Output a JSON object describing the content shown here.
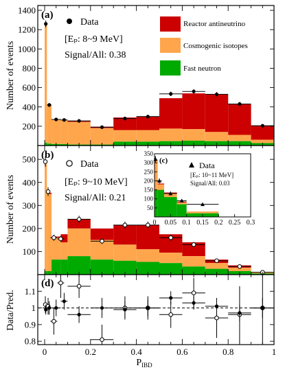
{
  "colors": {
    "reactor": "#cc0000",
    "cosmogenic": "#ffa64d",
    "fast_neutron": "#00aa00",
    "data": "#000000"
  },
  "chart_data": [
    {
      "panel": "a",
      "type": "area",
      "tag": "(a)",
      "ylabel": "Number of events",
      "ylim": [
        0,
        1450
      ],
      "yticks": [
        200,
        400,
        600,
        800,
        1000,
        1200,
        1400
      ],
      "xlim": [
        -0.03,
        1.0
      ],
      "annotation_lines": [
        "[Eₚ: 8~9 MeV]",
        "Signal/All: 0.38"
      ],
      "legend": {
        "data_label": "Data",
        "reactor_label": "Reactor antineutrino",
        "cosmogenic_label": "Cosmogenic isotopes",
        "fast_label": "Fast neutron"
      },
      "bins": [
        0,
        0.01,
        0.03,
        0.07,
        0.1,
        0.2,
        0.3,
        0.4,
        0.5,
        0.6,
        0.7,
        0.8,
        0.9,
        1.0
      ],
      "fast_neutron": [
        30,
        20,
        15,
        15,
        10,
        10,
        40,
        40,
        45,
        50,
        45,
        45,
        25
      ],
      "cosmogenic_cum": [
        1270,
        420,
        270,
        265,
        245,
        180,
        160,
        160,
        175,
        170,
        140,
        110,
        60
      ],
      "total_cum": [
        1270,
        420,
        270,
        265,
        255,
        195,
        290,
        300,
        490,
        540,
        530,
        430,
        205
      ],
      "data": {
        "x": [
          0.005,
          0.02,
          0.05,
          0.085,
          0.15,
          0.25,
          0.35,
          0.45,
          0.55,
          0.65,
          0.75,
          0.85,
          0.95
        ],
        "xerr": [
          0.005,
          0.01,
          0.02,
          0.015,
          0.05,
          0.05,
          0.05,
          0.05,
          0.05,
          0.05,
          0.05,
          0.05,
          0.05
        ],
        "y": [
          1260,
          420,
          270,
          265,
          255,
          190,
          280,
          300,
          535,
          560,
          530,
          430,
          205
        ],
        "yerr": [
          35,
          20,
          16,
          16,
          16,
          14,
          17,
          17,
          23,
          24,
          23,
          21,
          14
        ]
      }
    },
    {
      "panel": "b",
      "type": "area",
      "tag": "(b)",
      "ylabel": "Number of events",
      "ylim": [
        0,
        560
      ],
      "yticks": [
        100,
        200,
        300,
        400,
        500
      ],
      "xlim": [
        -0.03,
        1.0
      ],
      "annotation_lines": [
        "[Eₚ: 9~10 MeV]",
        "Signal/All: 0.21"
      ],
      "legend": {
        "data_label": "Data"
      },
      "bins": [
        0,
        0.01,
        0.03,
        0.07,
        0.1,
        0.2,
        0.3,
        0.4,
        0.5,
        0.6,
        0.7,
        0.8,
        0.9,
        1.0
      ],
      "fast_neutron": [
        15,
        15,
        65,
        65,
        80,
        65,
        60,
        55,
        50,
        35,
        25,
        15,
        5
      ],
      "cosmogenic_cum": [
        480,
        350,
        160,
        140,
        200,
        150,
        130,
        110,
        95,
        80,
        50,
        30,
        10
      ],
      "total_cum": [
        480,
        355,
        165,
        175,
        240,
        200,
        215,
        215,
        175,
        140,
        65,
        40,
        10
      ],
      "data": {
        "x": [
          0.003,
          0.015,
          0.04,
          0.07,
          0.15,
          0.25,
          0.35,
          0.45,
          0.55,
          0.65,
          0.75,
          0.85,
          0.95
        ],
        "xerr": [
          0.003,
          0.008,
          0.015,
          0.015,
          0.05,
          0.05,
          0.05,
          0.05,
          0.05,
          0.05,
          0.05,
          0.05,
          0.05
        ],
        "y": [
          490,
          360,
          160,
          155,
          240,
          145,
          215,
          215,
          160,
          130,
          60,
          35,
          10
        ],
        "yerr": [
          22,
          19,
          13,
          12,
          15,
          12,
          15,
          15,
          13,
          11,
          8,
          6,
          3
        ]
      }
    },
    {
      "panel": "c",
      "type": "area",
      "tag": "(c)",
      "ylim": [
        0,
        350
      ],
      "yticks": [
        0,
        50,
        100,
        150,
        200,
        250,
        300,
        350
      ],
      "xlim": [
        0,
        0.3
      ],
      "xticks": [
        0,
        0.05,
        0.1,
        0.15,
        0.2,
        0.25,
        0.3
      ],
      "xtick_labels": [
        "0",
        "0.05",
        "0.1",
        "0.15",
        "0.2",
        "0.25",
        "0.3"
      ],
      "annotation_lines": [
        "[Eₚ: 10~11 MeV]",
        "Signal/All: 0.03"
      ],
      "legend": {
        "data_label": "Data"
      },
      "bins": [
        0,
        0.01,
        0.03,
        0.07,
        0.1,
        0.2
      ],
      "fast_neutron": [
        150,
        150,
        110,
        70,
        20
      ],
      "cosmogenic_cum": [
        320,
        180,
        130,
        80,
        30
      ],
      "total_cum": [
        320,
        185,
        135,
        85,
        30
      ],
      "data": {
        "x": [
          0.003,
          0.015,
          0.05,
          0.085,
          0.15
        ],
        "xerr": [
          0.003,
          0.008,
          0.02,
          0.015,
          0.05
        ],
        "y": [
          320,
          200,
          130,
          90,
          70
        ],
        "yerr": [
          17,
          14,
          11,
          9,
          8
        ]
      }
    },
    {
      "panel": "d",
      "type": "scatter",
      "tag": "(d)",
      "ylabel": "Data/Pred.",
      "xlabel": "P_IBD",
      "xlim": [
        -0.03,
        1.0
      ],
      "ylim": [
        0.78,
        1.2
      ],
      "yticks": [
        0.8,
        0.9,
        1.0,
        1.1
      ],
      "ytick_labels": [
        "0.8",
        "0.9",
        "1",
        "1.1"
      ],
      "xticks": [
        0,
        0.2,
        0.4,
        0.6,
        0.8,
        1.0
      ],
      "xtick_labels": [
        "0",
        "0.2",
        "0.4",
        "0.6",
        "0.8",
        "1"
      ],
      "reference_y": 1.0,
      "series_filled": {
        "x": [
          0.005,
          0.02,
          0.05,
          0.085,
          0.15,
          0.25,
          0.35,
          0.45,
          0.55,
          0.65,
          0.75,
          0.85,
          0.95
        ],
        "xerr": [
          0.005,
          0.01,
          0.02,
          0.015,
          0.05,
          0.05,
          0.05,
          0.05,
          0.05,
          0.05,
          0.05,
          0.05,
          0.05
        ],
        "y": [
          0.99,
          1.0,
          1.0,
          1.04,
          0.96,
          1.0,
          0.99,
          1.0,
          1.06,
          1.03,
          1.01,
          0.97,
          1.0
        ],
        "yerr": [
          0.03,
          0.04,
          0.05,
          0.05,
          0.05,
          0.06,
          0.05,
          0.05,
          0.04,
          0.04,
          0.04,
          0.05,
          0.06
        ]
      },
      "series_open": {
        "x": [
          0.003,
          0.015,
          0.04,
          0.07,
          0.15,
          0.25,
          0.35,
          0.45,
          0.55,
          0.65,
          0.75,
          0.85,
          0.95
        ],
        "xerr": [
          0.003,
          0.008,
          0.015,
          0.015,
          0.05,
          0.05,
          0.05,
          0.05,
          0.05,
          0.05,
          0.05,
          0.05,
          0.05
        ],
        "y": [
          1.02,
          1.01,
          0.92,
          1.15,
          1.13,
          0.81,
          1.0,
          1.0,
          0.96,
          1.09,
          0.94,
          0.96,
          1.0
        ],
        "yerr": [
          0.05,
          0.05,
          0.08,
          0.09,
          0.07,
          0.09,
          0.07,
          0.07,
          0.08,
          0.09,
          0.12,
          0.17,
          0.3
        ]
      }
    }
  ]
}
